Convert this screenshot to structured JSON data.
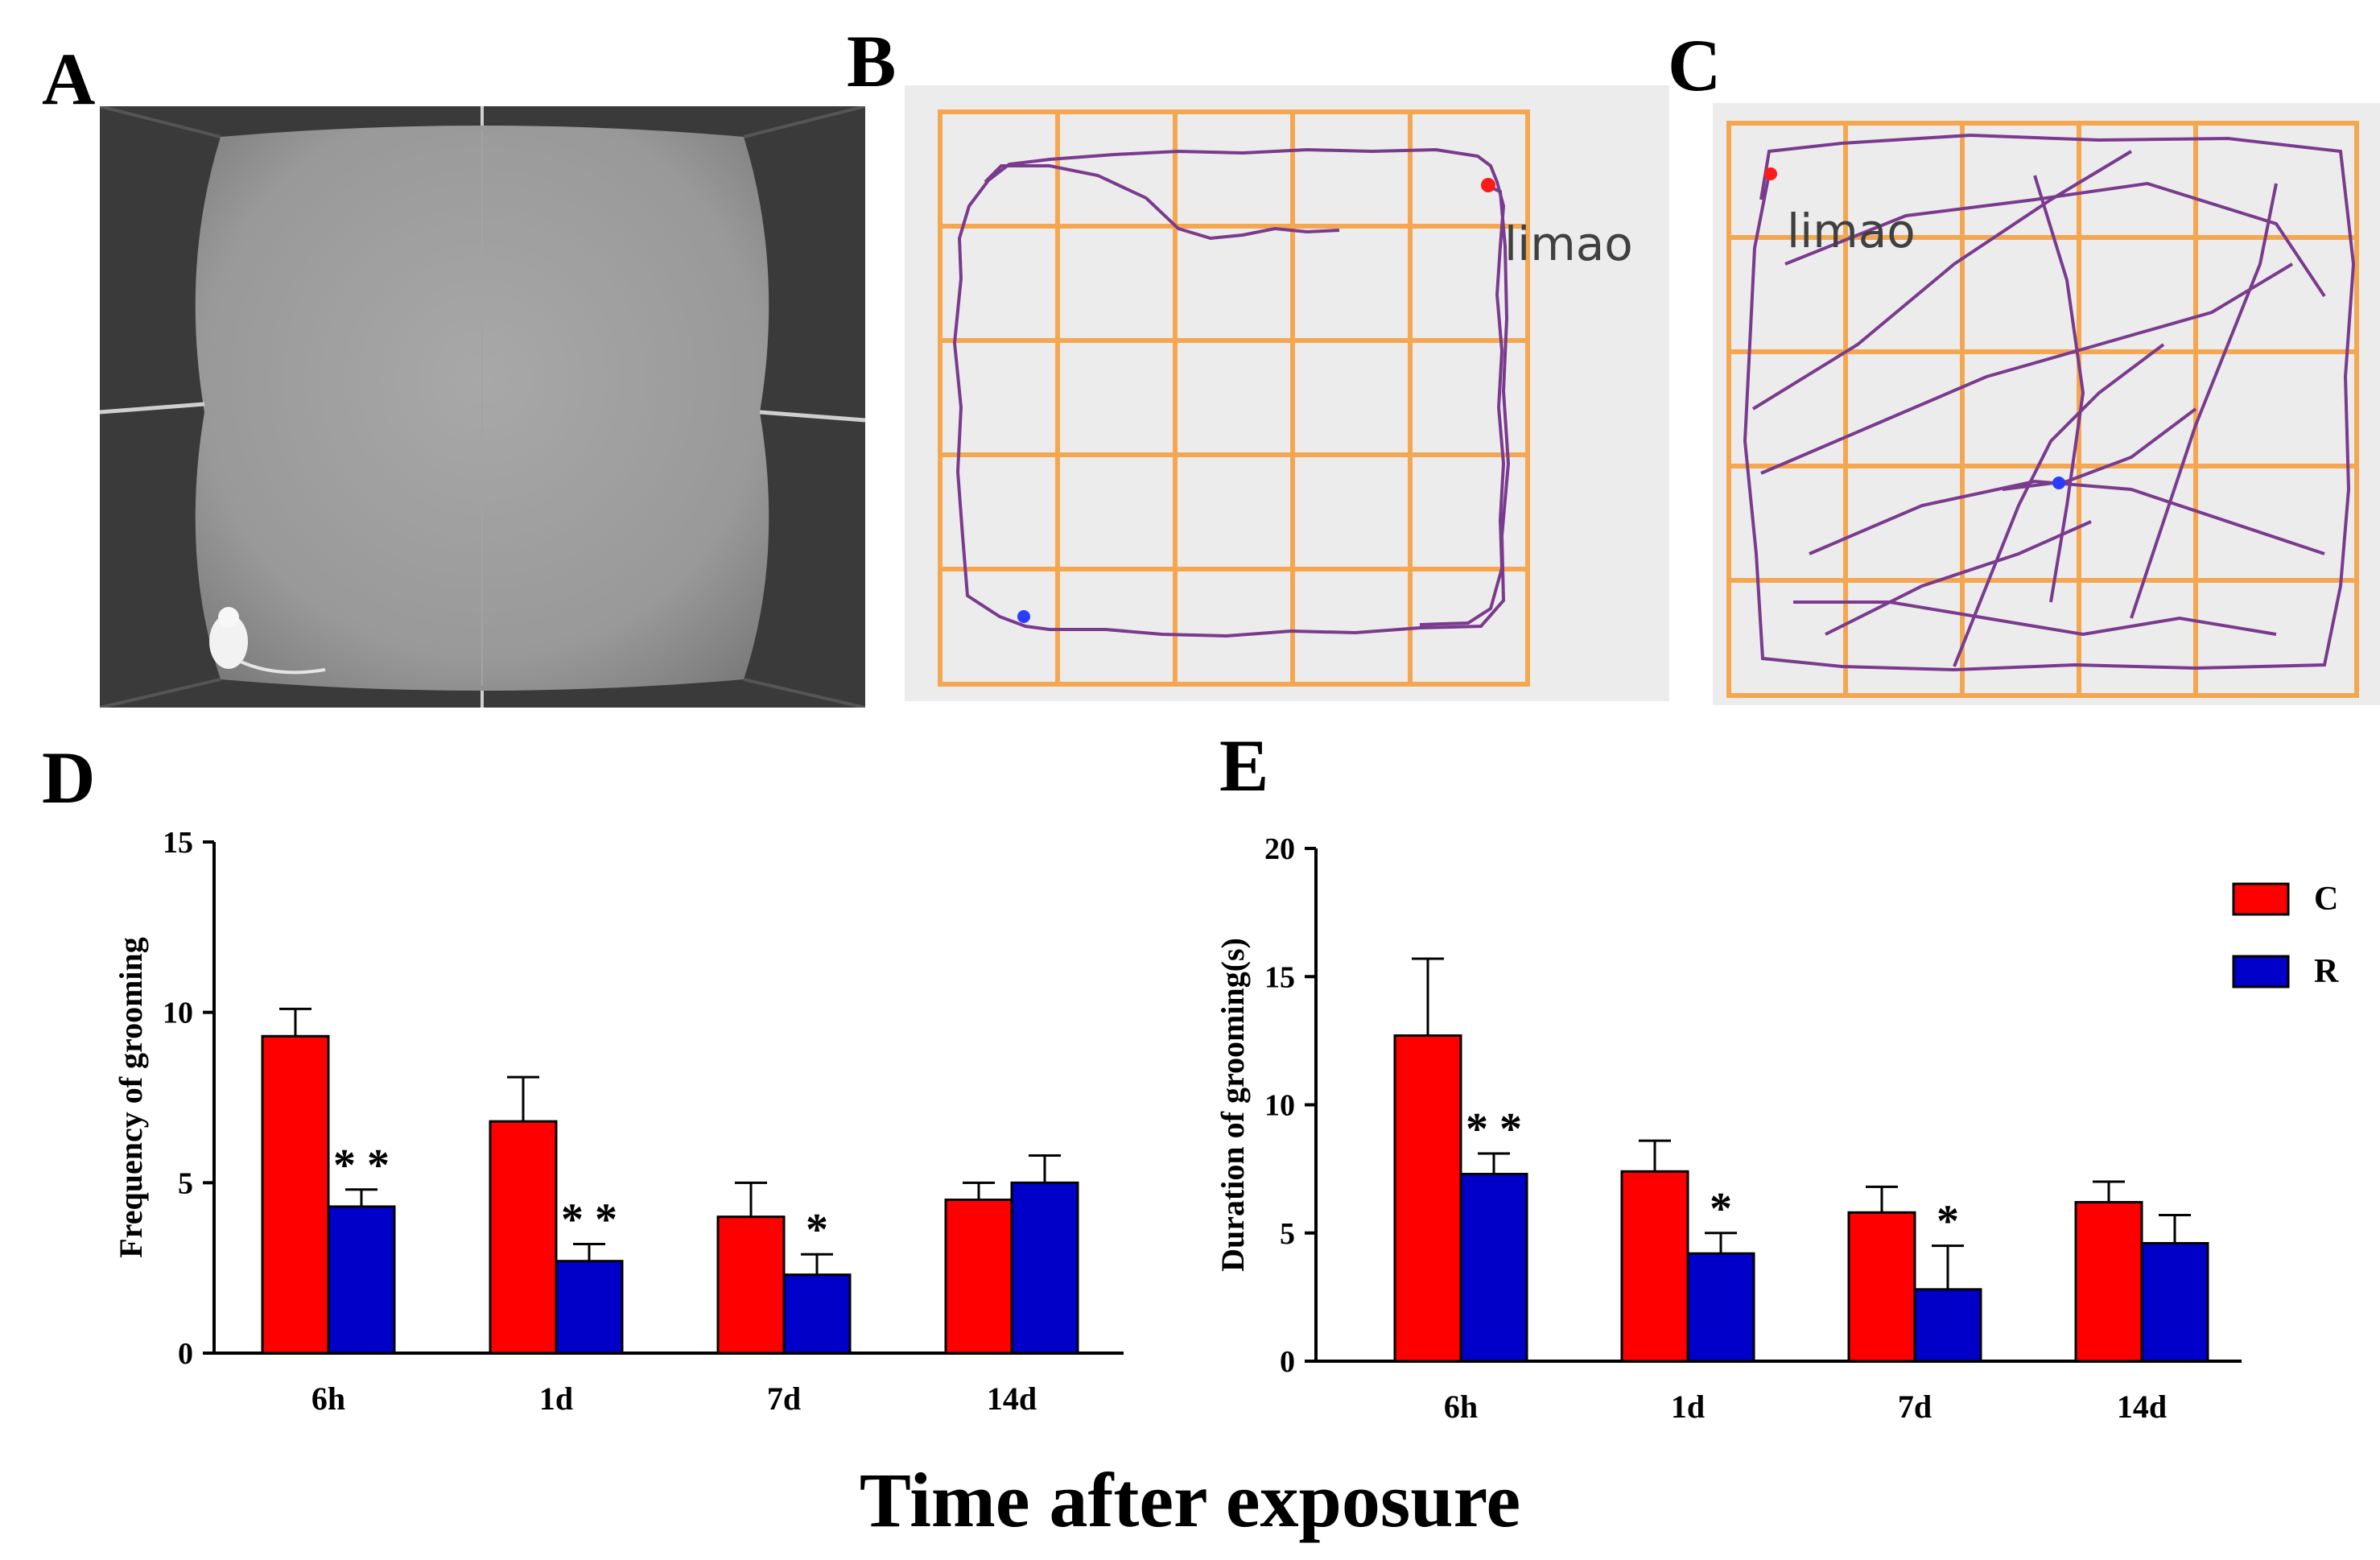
{
  "panels": {
    "a": {
      "letter": "A"
    },
    "b": {
      "letter": "B",
      "track_label": "limao"
    },
    "c": {
      "letter": "C",
      "track_label": "limao"
    },
    "d": {
      "letter": "D"
    },
    "e": {
      "letter": "E"
    }
  },
  "x_axis_title": "Time after exposure",
  "colors": {
    "series_c": "#ff0000",
    "series_r": "#0000c8",
    "grid": "#f5a040",
    "track": "#7a3a8e",
    "start_dot": "#ff1a1a",
    "end_dot": "#2a3cff"
  },
  "chart_data": [
    {
      "type": "bar",
      "panel": "D",
      "categories": [
        "6h",
        "1d",
        "7d",
        "14d"
      ],
      "ylabel": "Frequency of grooming",
      "ylim": [
        0,
        15
      ],
      "yticks": [
        0,
        5,
        10,
        15
      ],
      "series": [
        {
          "name": "C",
          "values": [
            9.3,
            6.8,
            4.0,
            4.5
          ],
          "errors": [
            0.8,
            1.3,
            1.0,
            0.5
          ]
        },
        {
          "name": "R",
          "values": [
            4.3,
            2.7,
            2.3,
            5.0
          ],
          "errors": [
            0.5,
            0.5,
            0.6,
            0.8
          ]
        }
      ],
      "significance": [
        "* *",
        "* *",
        "*",
        ""
      ]
    },
    {
      "type": "bar",
      "panel": "E",
      "categories": [
        "6h",
        "1d",
        "7d",
        "14d"
      ],
      "ylabel": "Duration of grooming(s)",
      "ylim": [
        0,
        20
      ],
      "yticks": [
        0,
        5,
        10,
        15,
        20
      ],
      "series": [
        {
          "name": "C",
          "values": [
            12.7,
            7.4,
            5.8,
            6.2
          ],
          "errors": [
            3.0,
            1.2,
            1.0,
            0.8
          ]
        },
        {
          "name": "R",
          "values": [
            7.3,
            4.2,
            2.8,
            4.6
          ],
          "errors": [
            0.8,
            0.8,
            1.7,
            1.1
          ]
        }
      ],
      "significance": [
        "* *",
        "*",
        "*",
        ""
      ],
      "legend": [
        "C",
        "R"
      ],
      "legend_position": "top-right"
    }
  ]
}
